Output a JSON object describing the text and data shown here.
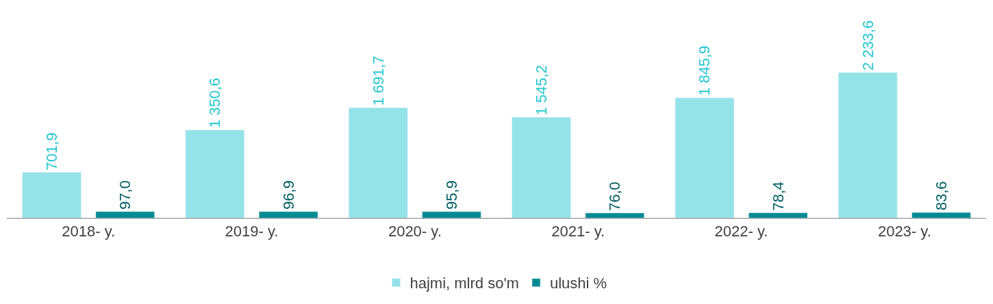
{
  "chart_data": {
    "type": "bar",
    "categories": [
      "2018- y.",
      "2019- y.",
      "2020- y.",
      "2021- y.",
      "2022- y.",
      "2023- y."
    ],
    "series": [
      {
        "name": "hajmi, mlrd so'm",
        "color": "#94e3e9",
        "values": [
          701.9,
          1350.6,
          1691.7,
          1545.2,
          1845.9,
          2233.6
        ],
        "value_labels": [
          "701,9",
          "1 350,6",
          "1 691,7",
          "1 545,2",
          "1 845,9",
          "2 233,6"
        ]
      },
      {
        "name": "ulushi %",
        "color": "#008b93",
        "values": [
          97.0,
          96.9,
          95.9,
          76.0,
          78.4,
          83.6
        ],
        "value_labels": [
          "97,0",
          "96,9",
          "95,9",
          "76,0",
          "78,4",
          "83,6"
        ]
      }
    ],
    "tick_labels": "x",
    "legend": "bottom"
  }
}
